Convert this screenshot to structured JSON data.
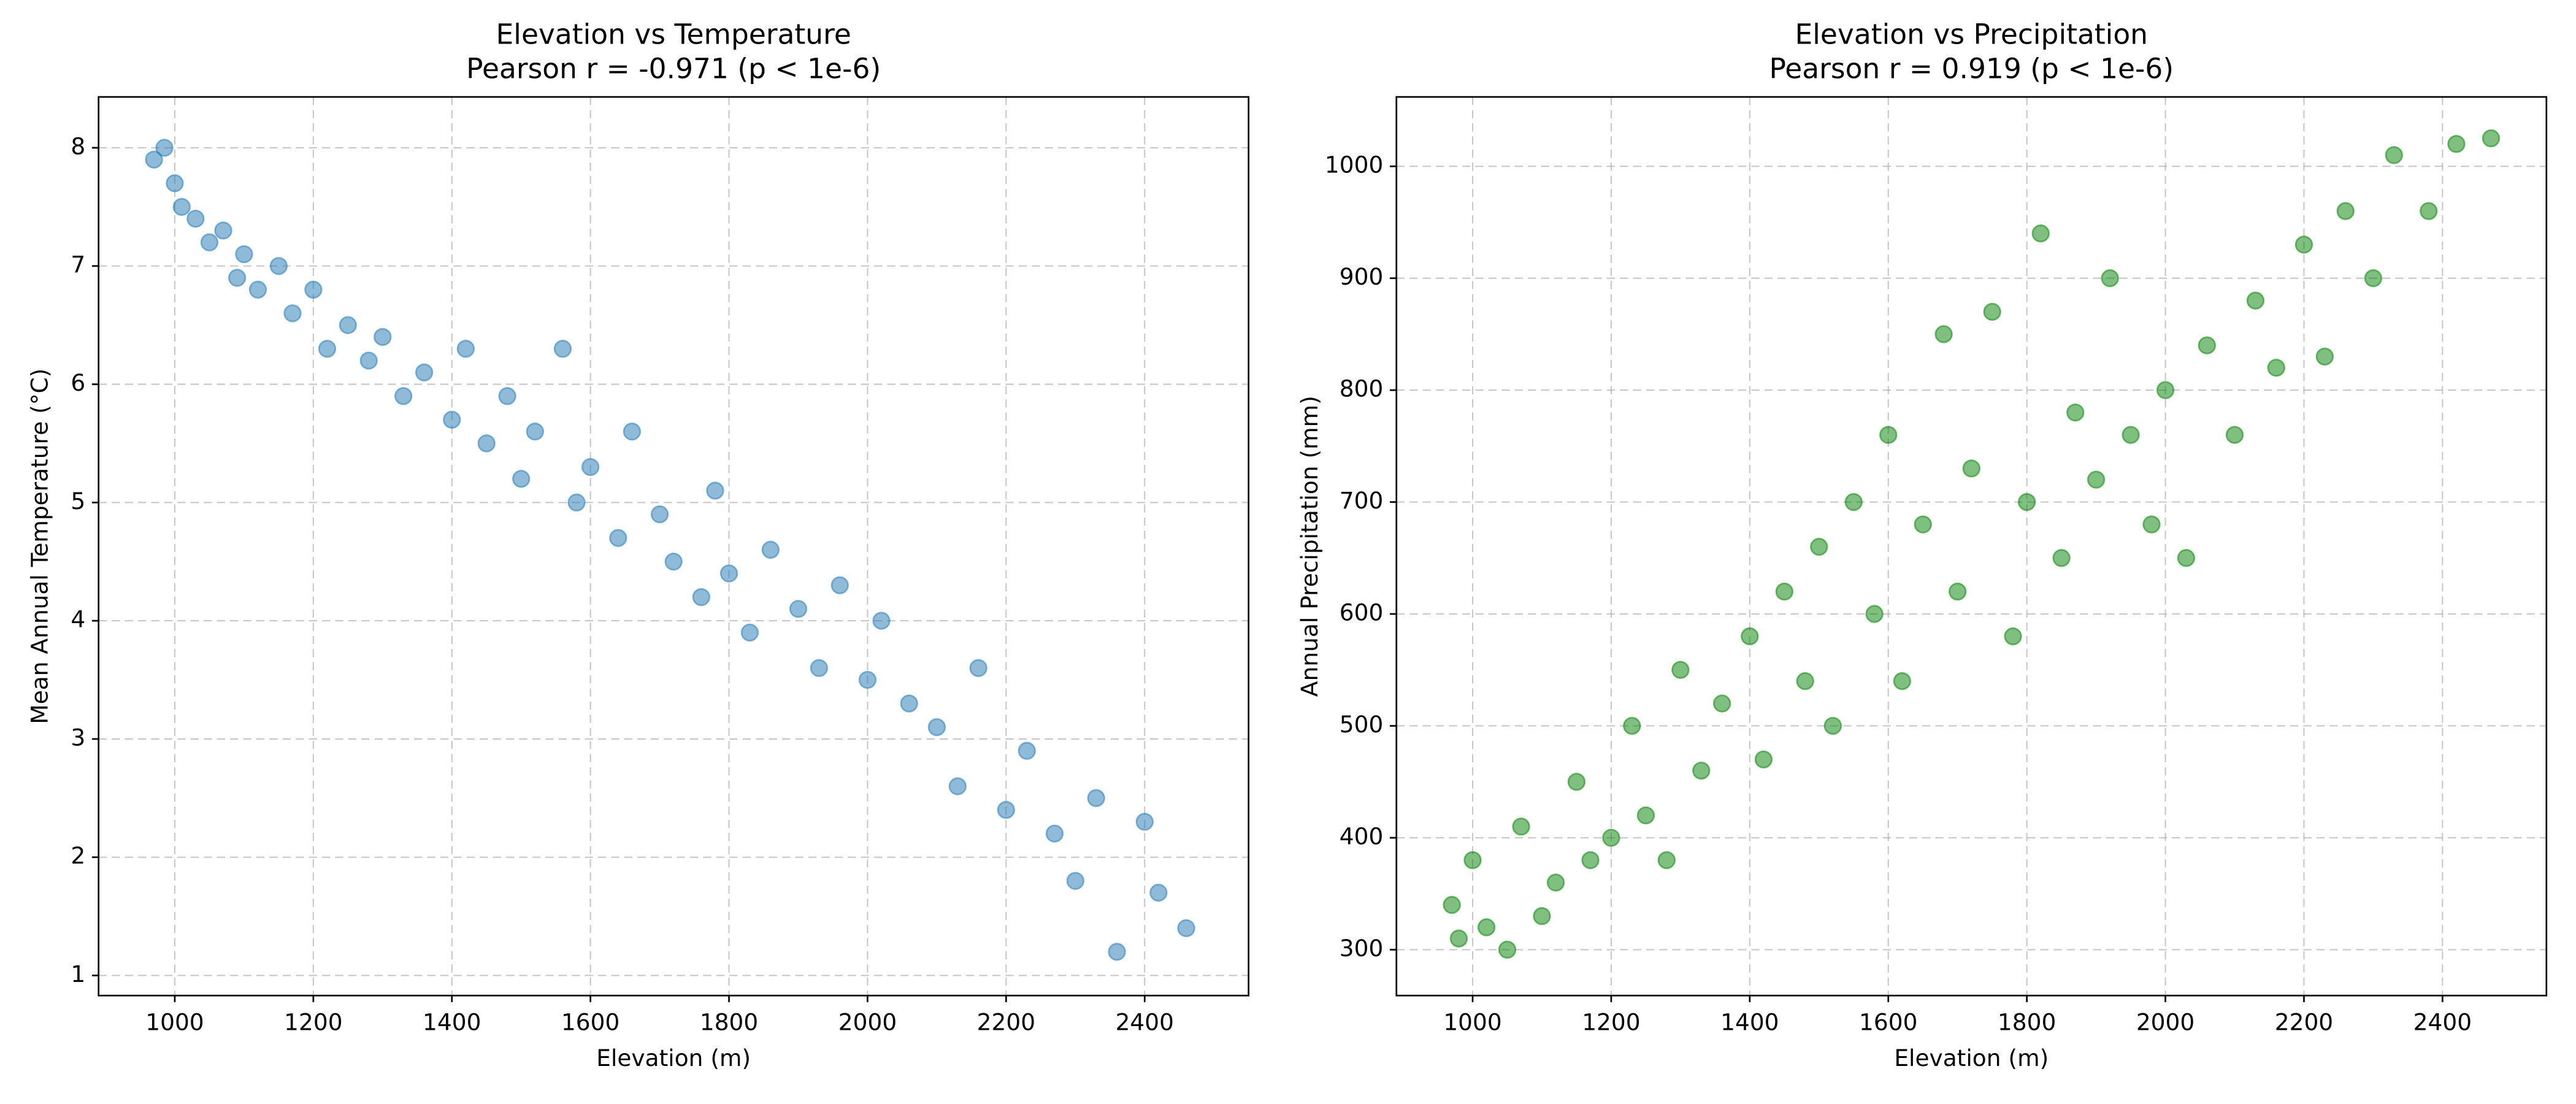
{
  "chart_data": [
    {
      "type": "scatter",
      "title": "Elevation vs Temperature",
      "subtitle": "Pearson r = -0.971 (p < 1e-6)",
      "x_label": "Elevation (m)",
      "y_label": "Mean Annual Temperature (°C)",
      "color": "#1f77b4",
      "alpha": 0.5,
      "grid": true,
      "xlim": [
        890,
        2550
      ],
      "ylim": [
        0.83,
        8.43
      ],
      "xticks": [
        1000,
        1200,
        1400,
        1600,
        1800,
        2000,
        2200,
        2400
      ],
      "yticks": [
        1,
        2,
        3,
        4,
        5,
        6,
        7,
        8
      ],
      "x": [
        970,
        985,
        1000,
        1010,
        1030,
        1050,
        1070,
        1090,
        1100,
        1120,
        1150,
        1170,
        1200,
        1220,
        1250,
        1280,
        1300,
        1330,
        1360,
        1400,
        1420,
        1450,
        1480,
        1500,
        1520,
        1560,
        1580,
        1600,
        1640,
        1660,
        1700,
        1720,
        1760,
        1780,
        1800,
        1830,
        1860,
        1900,
        1930,
        1960,
        2000,
        2020,
        2060,
        2100,
        2130,
        2160,
        2200,
        2230,
        2270,
        2300,
        2330,
        2360,
        2400,
        2420,
        2460
      ],
      "values": [
        7.9,
        8.0,
        7.7,
        7.5,
        7.4,
        7.2,
        7.3,
        6.9,
        7.1,
        6.8,
        7.0,
        6.6,
        6.8,
        6.3,
        6.5,
        6.2,
        6.4,
        5.9,
        6.1,
        5.7,
        6.3,
        5.5,
        5.9,
        5.2,
        5.6,
        6.3,
        5.0,
        5.3,
        4.7,
        5.6,
        4.9,
        4.5,
        4.2,
        5.1,
        4.4,
        3.9,
        4.6,
        4.1,
        3.6,
        4.3,
        3.5,
        4.0,
        3.3,
        3.1,
        2.6,
        3.6,
        2.4,
        2.9,
        2.2,
        1.8,
        2.5,
        1.2,
        2.3,
        1.7,
        1.4
      ]
    },
    {
      "type": "scatter",
      "title": "Elevation vs Precipitation",
      "subtitle": "Pearson r = 0.919 (p < 1e-6)",
      "x_label": "Elevation (m)",
      "y_label": "Annual Precipitation (mm)",
      "color": "#008000",
      "alpha": 0.5,
      "grid": true,
      "xlim": [
        890,
        2550
      ],
      "ylim": [
        259,
        1062
      ],
      "xticks": [
        1000,
        1200,
        1400,
        1600,
        1800,
        2000,
        2200,
        2400
      ],
      "yticks": [
        300,
        400,
        500,
        600,
        700,
        800,
        900,
        1000
      ],
      "x": [
        970,
        980,
        1000,
        1020,
        1050,
        1070,
        1100,
        1120,
        1150,
        1170,
        1200,
        1230,
        1250,
        1280,
        1300,
        1330,
        1360,
        1400,
        1420,
        1450,
        1480,
        1500,
        1520,
        1550,
        1580,
        1600,
        1620,
        1650,
        1680,
        1700,
        1720,
        1750,
        1780,
        1800,
        1820,
        1850,
        1870,
        1900,
        1920,
        1950,
        1980,
        2000,
        2030,
        2060,
        2100,
        2130,
        2160,
        2200,
        2230,
        2260,
        2300,
        2330,
        2380,
        2420,
        2470
      ],
      "values": [
        340,
        310,
        380,
        320,
        300,
        410,
        330,
        360,
        450,
        380,
        400,
        500,
        420,
        380,
        550,
        460,
        520,
        580,
        470,
        620,
        540,
        660,
        500,
        700,
        600,
        760,
        540,
        680,
        850,
        620,
        730,
        870,
        580,
        700,
        940,
        650,
        780,
        720,
        900,
        760,
        680,
        800,
        650,
        840,
        760,
        880,
        820,
        930,
        830,
        960,
        900,
        1010,
        960,
        1020,
        1025
      ]
    }
  ]
}
